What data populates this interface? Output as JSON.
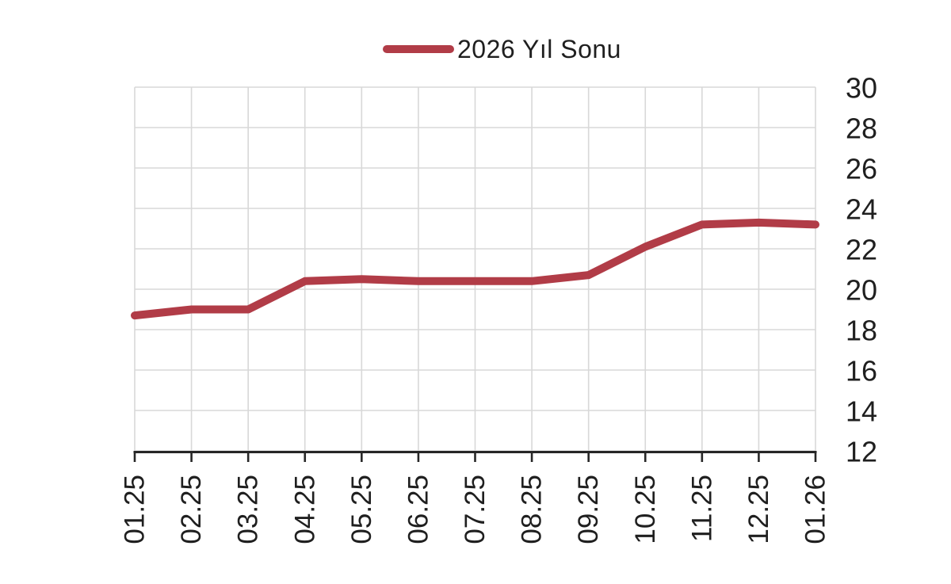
{
  "legend": {
    "label": "2026 Yıl Sonu"
  },
  "colors": {
    "line": "#b13c47",
    "grid": "#d8d8d8",
    "axis": "#262626",
    "text": "#1f1f1f",
    "background": "#ffffff"
  },
  "chart_data": {
    "type": "line",
    "title": "",
    "xlabel": "",
    "ylabel": "",
    "categories": [
      "01.25",
      "02.25",
      "03.25",
      "04.25",
      "05.25",
      "06.25",
      "07.25",
      "08.25",
      "09.25",
      "10.25",
      "11.25",
      "12.25",
      "01.26"
    ],
    "series": [
      {
        "name": "2026 Yıl Sonu",
        "values": [
          18.7,
          19.0,
          19.0,
          20.4,
          20.5,
          20.4,
          20.4,
          20.4,
          20.7,
          22.1,
          23.2,
          23.3,
          23.2
        ]
      }
    ],
    "ylim": [
      12,
      30
    ],
    "ytick_step": 2,
    "yticks": [
      12,
      14,
      16,
      18,
      20,
      22,
      24,
      26,
      28,
      30
    ],
    "y_axis_side": "right",
    "grid": "on",
    "legend_position": "top-center",
    "x_tick_label_rotation": -90
  }
}
